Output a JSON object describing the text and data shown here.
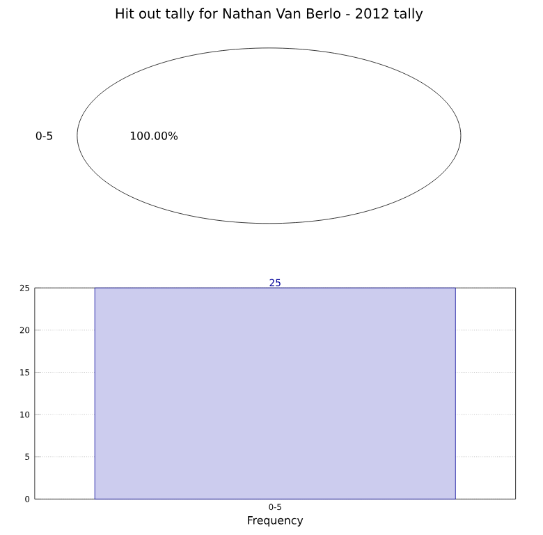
{
  "chart_data": [
    {
      "type": "pie",
      "title": "Hit out tally for Nathan Van Berlo - 2012 tally",
      "categories": [
        "0-5"
      ],
      "values": [
        100
      ],
      "colors": [
        "#ffffff"
      ],
      "value_labels": [
        "100.00%"
      ]
    },
    {
      "type": "bar",
      "categories": [
        "0-5"
      ],
      "values": [
        25
      ],
      "color": "#ccccee",
      "xlabel": "Frequency",
      "ylim": [
        0,
        25
      ],
      "yticks": [
        0,
        5,
        10,
        15,
        20,
        25
      ],
      "grid": true,
      "data_labels": true
    }
  ]
}
